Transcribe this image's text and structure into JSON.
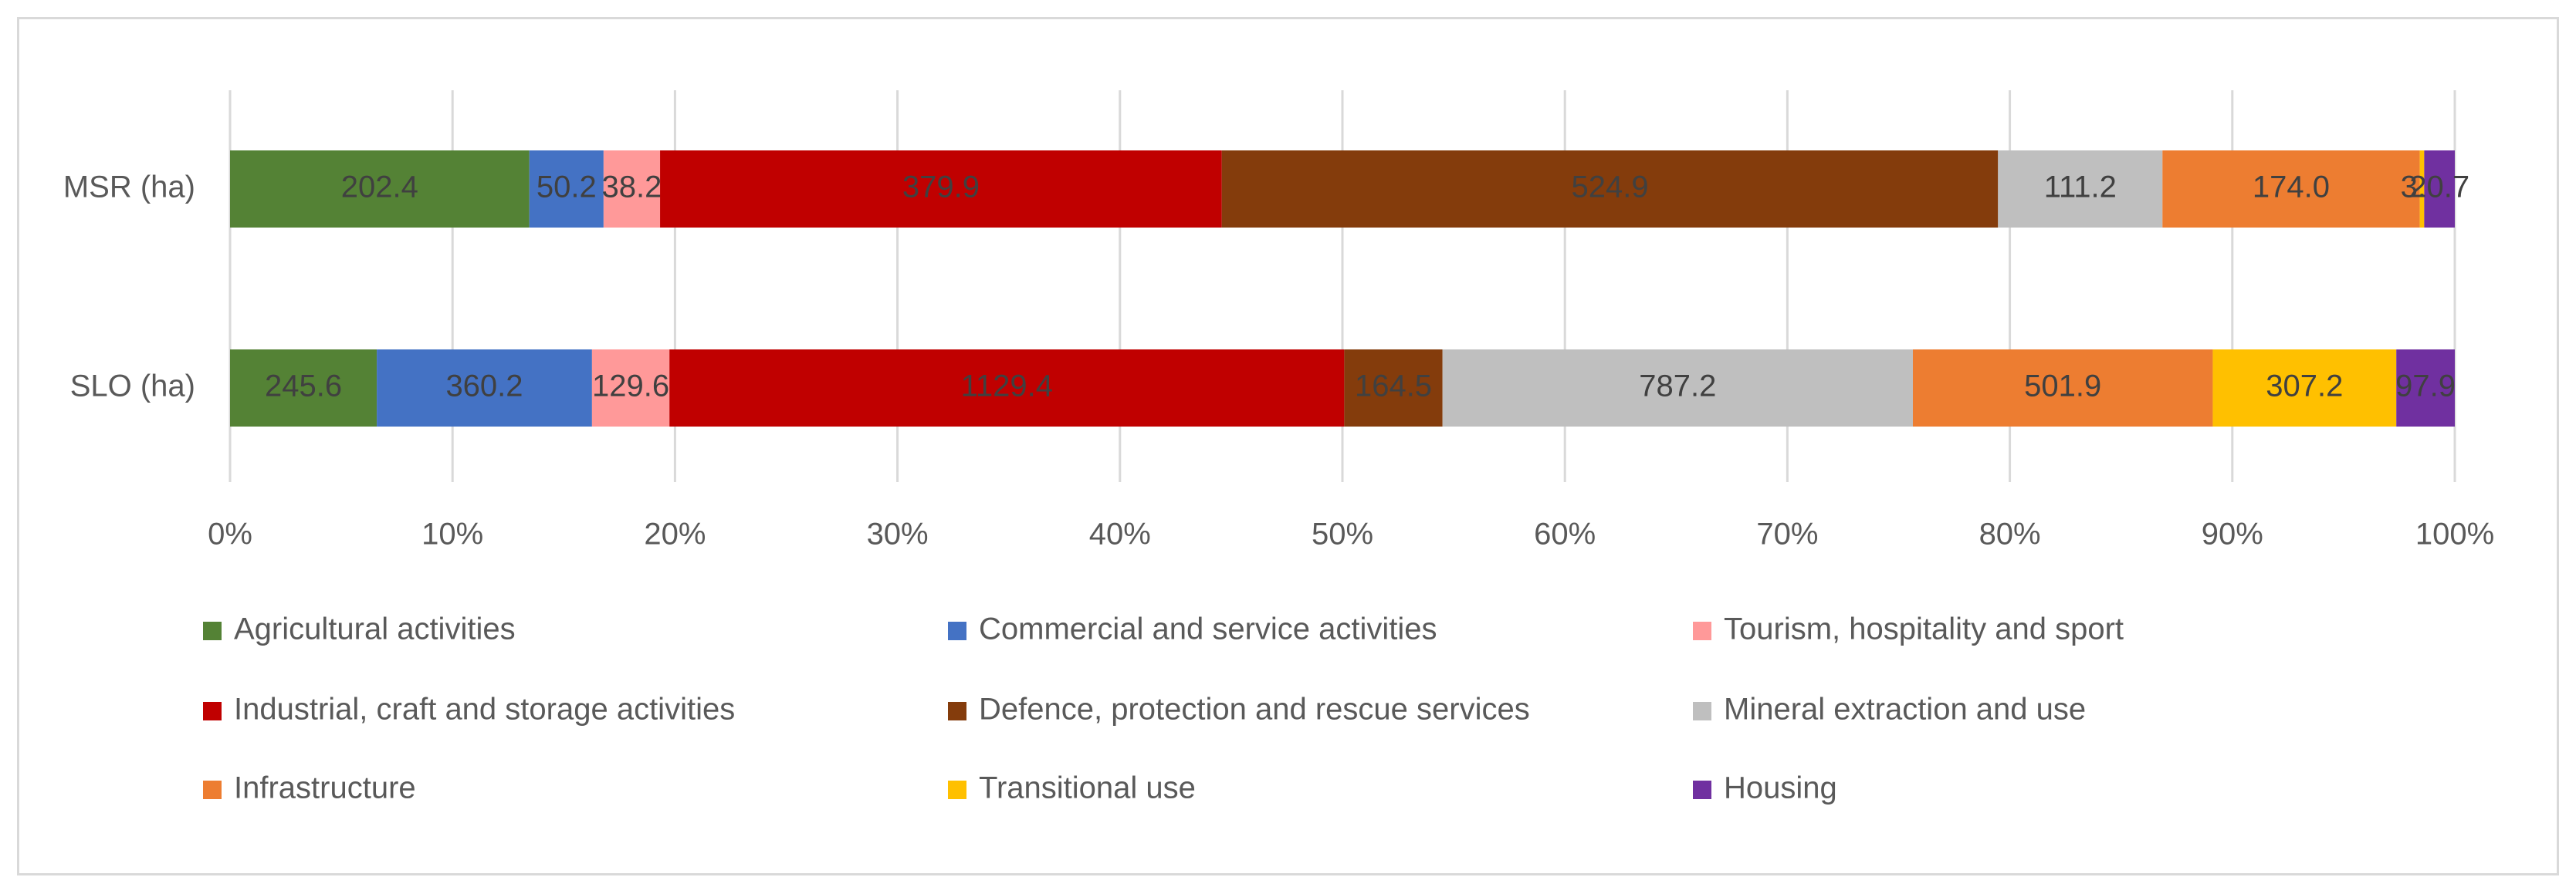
{
  "chart_data": {
    "type": "bar",
    "orientation": "horizontal",
    "stacking": "percent",
    "title": "",
    "xlabel": "",
    "ylabel": "",
    "xlim": [
      0,
      100
    ],
    "x_ticks": [
      "0%",
      "10%",
      "20%",
      "30%",
      "40%",
      "50%",
      "60%",
      "70%",
      "80%",
      "90%",
      "100%"
    ],
    "categories": [
      "MSR (ha)",
      "SLO (ha)"
    ],
    "grid": true,
    "legend_position": "bottom",
    "series": [
      {
        "name": "Agricultural activities",
        "color": "#548235",
        "values": [
          202.4,
          245.6
        ],
        "labels": [
          "202.4",
          "245.6"
        ]
      },
      {
        "name": "Commercial and service activities",
        "color": "#4472C4",
        "values": [
          50.2,
          360.2
        ],
        "labels": [
          "50.2",
          "360.2"
        ]
      },
      {
        "name": "Tourism, hospitality and sport",
        "color": "#FF9999",
        "values": [
          38.2,
          129.6
        ],
        "labels": [
          "38.2",
          "129.6"
        ]
      },
      {
        "name": "Industrial, craft and storage activities",
        "color": "#C00000",
        "values": [
          379.9,
          1129.4
        ],
        "labels": [
          "379.9",
          "1129.4"
        ]
      },
      {
        "name": "Defence, protection and rescue services",
        "color": "#843C0C",
        "values": [
          524.9,
          164.5
        ],
        "labels": [
          "524.9",
          "164.5"
        ]
      },
      {
        "name": "Mineral extraction and use",
        "color": "#BFBFBF",
        "values": [
          111.2,
          787.2
        ],
        "labels": [
          "111.2",
          "787.2"
        ]
      },
      {
        "name": "Infrastructure",
        "color": "#ED7D31",
        "values": [
          174.0,
          501.9
        ],
        "labels": [
          "174.0",
          "501.9"
        ]
      },
      {
        "name": "Transitional use",
        "color": "#FFC000",
        "values": [
          3.0,
          307.2
        ],
        "labels": [
          "3.0",
          "307.2"
        ]
      },
      {
        "name": "Housing",
        "color": "#7030A0",
        "values": [
          20.7,
          97.9
        ],
        "labels": [
          "20.7",
          "97.9"
        ]
      }
    ]
  }
}
